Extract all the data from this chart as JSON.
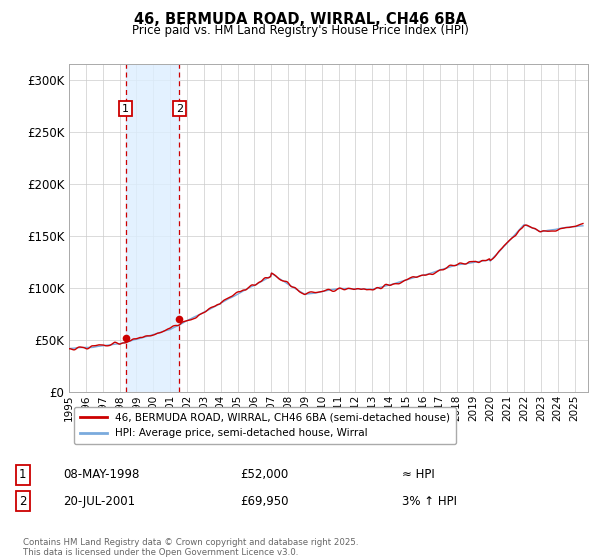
{
  "title_line1": "46, BERMUDA ROAD, WIRRAL, CH46 6BA",
  "title_line2": "Price paid vs. HM Land Registry's House Price Index (HPI)",
  "ylabel_ticks": [
    "£0",
    "£50K",
    "£100K",
    "£150K",
    "£200K",
    "£250K",
    "£300K"
  ],
  "ytick_values": [
    0,
    50000,
    100000,
    150000,
    200000,
    250000,
    300000
  ],
  "ylim": [
    0,
    315000
  ],
  "xlim_start": 1995.0,
  "xlim_end": 2025.8,
  "xticks": [
    1995,
    1996,
    1997,
    1998,
    1999,
    2000,
    2001,
    2002,
    2003,
    2004,
    2005,
    2006,
    2007,
    2008,
    2009,
    2010,
    2011,
    2012,
    2013,
    2014,
    2015,
    2016,
    2017,
    2018,
    2019,
    2020,
    2021,
    2022,
    2023,
    2024,
    2025
  ],
  "purchase1_x": 1998.36,
  "purchase1_y": 52000,
  "purchase1_label": "1",
  "purchase1_date": "08-MAY-1998",
  "purchase1_price": "£52,000",
  "purchase1_hpi": "≈ HPI",
  "purchase2_x": 2001.55,
  "purchase2_y": 69950,
  "purchase2_label": "2",
  "purchase2_date": "20-JUL-2001",
  "purchase2_price": "£69,950",
  "purchase2_hpi": "3% ↑ HPI",
  "line_color_red": "#cc0000",
  "line_color_blue": "#7aaadd",
  "vline_color": "#cc0000",
  "highlight_color": "#ddeeff",
  "annotation_box_edge": "#cc0000",
  "legend_label_red": "46, BERMUDA ROAD, WIRRAL, CH46 6BA (semi-detached house)",
  "legend_label_blue": "HPI: Average price, semi-detached house, Wirral",
  "footnote": "Contains HM Land Registry data © Crown copyright and database right 2025.\nThis data is licensed under the Open Government Licence v3.0.",
  "background_color": "#ffffff",
  "grid_color": "#cccccc",
  "base_price": 42000
}
